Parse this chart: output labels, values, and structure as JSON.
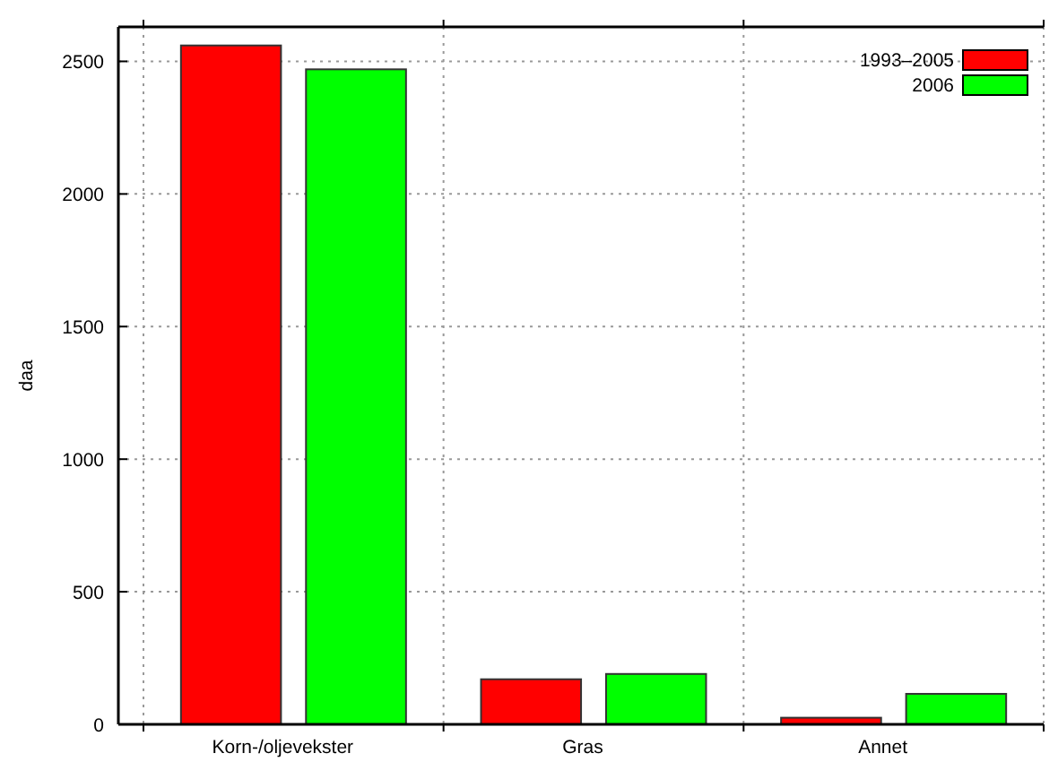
{
  "chart_data": {
    "type": "bar",
    "ylabel": "daa",
    "categories": [
      "Korn-/oljevekster",
      "Gras",
      "Annet"
    ],
    "series": [
      {
        "name": "1993–2005",
        "color": "#ff0000",
        "values": [
          2560,
          170,
          25
        ]
      },
      {
        "name": "2006",
        "color": "#00ff00",
        "values": [
          2470,
          190,
          115
        ]
      }
    ],
    "ylim": [
      0,
      2630
    ],
    "yticks": [
      0,
      500,
      1000,
      1500,
      2000,
      2500
    ],
    "grid": true,
    "legend": "top right"
  }
}
